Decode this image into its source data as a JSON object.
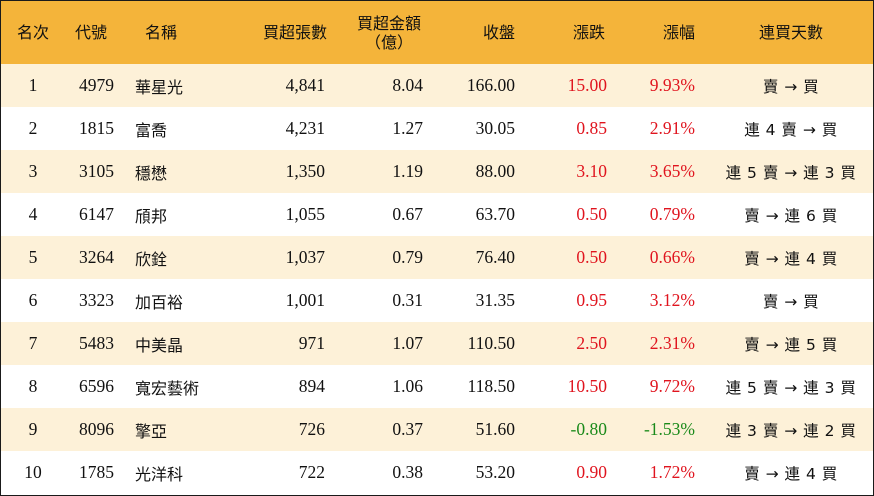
{
  "table": {
    "headers": {
      "rank": "名次",
      "code": "代號",
      "name": "名稱",
      "vol": "買超張數",
      "amt_line1": "買超金額",
      "amt_line2": "（億）",
      "close": "收盤",
      "chg": "漲跌",
      "pct": "漲幅",
      "days": "連買天數"
    },
    "colors": {
      "header_bg": "#f4b43a",
      "row_alt_bg": "#fdf1d8",
      "up": "#e0141e",
      "down": "#1a8a1a"
    },
    "rows": [
      {
        "rank": "1",
        "code": "4979",
        "name": "華星光",
        "vol": "4,841",
        "amt": "8.04",
        "close": "166.00",
        "chg": "15.00",
        "pct": "9.93%",
        "days": "賣 → 買",
        "dir": "up"
      },
      {
        "rank": "2",
        "code": "1815",
        "name": "富喬",
        "vol": "4,231",
        "amt": "1.27",
        "close": "30.05",
        "chg": "0.85",
        "pct": "2.91%",
        "days": "連 4 賣 → 買",
        "dir": "up"
      },
      {
        "rank": "3",
        "code": "3105",
        "name": "穩懋",
        "vol": "1,350",
        "amt": "1.19",
        "close": "88.00",
        "chg": "3.10",
        "pct": "3.65%",
        "days": "連 5 賣 → 連 3 買",
        "dir": "up"
      },
      {
        "rank": "4",
        "code": "6147",
        "name": "頎邦",
        "vol": "1,055",
        "amt": "0.67",
        "close": "63.70",
        "chg": "0.50",
        "pct": "0.79%",
        "days": "賣 → 連 6 買",
        "dir": "up"
      },
      {
        "rank": "5",
        "code": "3264",
        "name": "欣銓",
        "vol": "1,037",
        "amt": "0.79",
        "close": "76.40",
        "chg": "0.50",
        "pct": "0.66%",
        "days": "賣 → 連 4 買",
        "dir": "up"
      },
      {
        "rank": "6",
        "code": "3323",
        "name": "加百裕",
        "vol": "1,001",
        "amt": "0.31",
        "close": "31.35",
        "chg": "0.95",
        "pct": "3.12%",
        "days": "賣 → 買",
        "dir": "up"
      },
      {
        "rank": "7",
        "code": "5483",
        "name": "中美晶",
        "vol": "971",
        "amt": "1.07",
        "close": "110.50",
        "chg": "2.50",
        "pct": "2.31%",
        "days": "賣 → 連 5 買",
        "dir": "up"
      },
      {
        "rank": "8",
        "code": "6596",
        "name": "寬宏藝術",
        "vol": "894",
        "amt": "1.06",
        "close": "118.50",
        "chg": "10.50",
        "pct": "9.72%",
        "days": "連 5 賣 → 連 3 買",
        "dir": "up"
      },
      {
        "rank": "9",
        "code": "8096",
        "name": "擎亞",
        "vol": "726",
        "amt": "0.37",
        "close": "51.60",
        "chg": "-0.80",
        "pct": "-1.53%",
        "days": "連 3 賣 → 連 2 買",
        "dir": "down"
      },
      {
        "rank": "10",
        "code": "1785",
        "name": "光洋科",
        "vol": "722",
        "amt": "0.38",
        "close": "53.20",
        "chg": "0.90",
        "pct": "1.72%",
        "days": "賣 → 連 4 買",
        "dir": "up"
      }
    ]
  }
}
